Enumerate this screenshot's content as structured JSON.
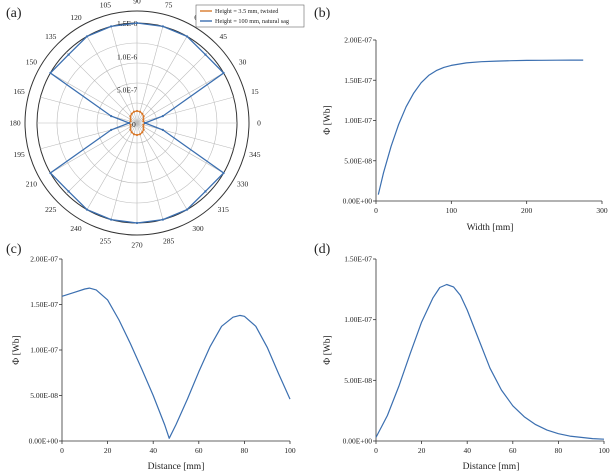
{
  "colors": {
    "blue": "#3b6fb0",
    "orange": "#d9792b",
    "axis": "#333333",
    "grid": "#bbbbbb"
  },
  "chart_data": [
    {
      "panel": "(a)",
      "type": "polar",
      "angle_labels": [
        "0",
        "15",
        "30",
        "45",
        "60",
        "75",
        "90",
        "105",
        "120",
        "135",
        "150",
        "165",
        "180",
        "195",
        "210",
        "225",
        "240",
        "255",
        "270",
        "285",
        "300",
        "315",
        "330",
        "345"
      ],
      "radial_ticks": [
        {
          "value": 5e-07,
          "label": "5.0E-7"
        },
        {
          "value": 1e-06,
          "label": "1.0E-6"
        },
        {
          "value": 1.5e-06,
          "label": "1.5E-6"
        }
      ],
      "rmax": 1.5e-06,
      "center_label": "0",
      "series": [
        {
          "name": "Height = 3.5 mm, twisted",
          "color": "#d9792b",
          "angles": [
            0,
            15,
            30,
            45,
            60,
            75,
            90,
            105,
            120,
            135,
            150,
            165,
            180,
            195,
            210,
            225,
            240,
            255,
            270,
            285,
            300,
            315,
            330,
            345,
            360
          ],
          "values": [
            1.2e-07,
            1e-07,
            1.1e-07,
            1.4e-07,
            1.6e-07,
            1.75e-07,
            1.8e-07,
            1.75e-07,
            1.6e-07,
            1.4e-07,
            1.1e-07,
            1e-07,
            1.2e-07,
            1e-07,
            1.1e-07,
            1.4e-07,
            1.6e-07,
            1.75e-07,
            1.8e-07,
            1.75e-07,
            1.6e-07,
            1.4e-07,
            1.1e-07,
            1e-07,
            1.2e-07
          ]
        },
        {
          "name": "Height = 100 mm, natural sag",
          "color": "#3b6fb0",
          "angles": [
            0,
            15,
            30,
            45,
            60,
            75,
            90,
            105,
            120,
            135,
            150,
            165,
            180,
            195,
            210,
            225,
            240,
            255,
            270,
            285,
            300,
            315,
            330,
            345,
            360
          ],
          "values": [
            1.2e-07,
            4e-07,
            1.5e-06,
            1.45e-06,
            1.5e-06,
            1.5e-06,
            1.5e-06,
            1.5e-06,
            1.5e-06,
            1.45e-06,
            1.5e-06,
            4e-07,
            1.2e-07,
            4e-07,
            1.5e-06,
            1.45e-06,
            1.5e-06,
            1.5e-06,
            1.5e-06,
            1.5e-06,
            1.5e-06,
            1.45e-06,
            1.5e-06,
            4e-07,
            1.2e-07
          ]
        }
      ]
    },
    {
      "panel": "(b)",
      "type": "line",
      "xlabel": "Width [mm]",
      "ylabel": "Φ [Wb]",
      "xlim": [
        0,
        300
      ],
      "ylim": [
        0,
        2e-07
      ],
      "xticks": [
        0,
        100,
        200,
        300
      ],
      "xtick_labels": [
        "0",
        "100",
        "200",
        "300"
      ],
      "yticks": [
        0,
        5e-08,
        1e-07,
        1.5e-07,
        2e-07
      ],
      "ytick_labels": [
        "0.00E+00",
        "5.00E-08",
        "1.00E-07",
        "1.50E-07",
        "2.00E-07"
      ],
      "series": [
        {
          "name": "Φ",
          "x": [
            3,
            10,
            20,
            30,
            40,
            50,
            60,
            70,
            80,
            90,
            100,
            120,
            140,
            160,
            180,
            200,
            220,
            240,
            260,
            275
          ],
          "y": [
            8e-09,
            3.5e-08,
            6.8e-08,
            9.5e-08,
            1.17e-07,
            1.34e-07,
            1.47e-07,
            1.56e-07,
            1.62e-07,
            1.66e-07,
            1.685e-07,
            1.715e-07,
            1.73e-07,
            1.738e-07,
            1.743e-07,
            1.746e-07,
            1.748e-07,
            1.749e-07,
            1.75e-07,
            1.75e-07
          ]
        }
      ]
    },
    {
      "panel": "(c)",
      "type": "line",
      "xlabel": "Distance [mm]",
      "ylabel": "Φ [Wb]",
      "xlim": [
        0,
        100
      ],
      "ylim": [
        0,
        2e-07
      ],
      "xticks": [
        0,
        20,
        40,
        60,
        80,
        100
      ],
      "xtick_labels": [
        "0",
        "20",
        "40",
        "60",
        "80",
        "100"
      ],
      "yticks": [
        0,
        5e-08,
        1e-07,
        1.5e-07,
        2e-07
      ],
      "ytick_labels": [
        "0.00E+00",
        "5.00E-08",
        "1.00E-07",
        "1.50E-07",
        "2.00E-07"
      ],
      "series": [
        {
          "name": "Φ",
          "x": [
            0,
            5,
            10,
            12,
            15,
            20,
            25,
            30,
            35,
            40,
            45,
            47,
            50,
            55,
            60,
            65,
            70,
            75,
            78,
            80,
            85,
            90,
            95,
            100
          ],
          "y": [
            1.59e-07,
            1.63e-07,
            1.67e-07,
            1.68e-07,
            1.66e-07,
            1.55e-07,
            1.33e-07,
            1.07e-07,
            7.9e-08,
            5e-08,
            1.8e-08,
            3e-09,
            1.8e-08,
            4.6e-08,
            7.6e-08,
            1.04e-07,
            1.26e-07,
            1.36e-07,
            1.38e-07,
            1.37e-07,
            1.26e-07,
            1.03e-07,
            7.4e-08,
            4.6e-08
          ]
        }
      ]
    },
    {
      "panel": "(d)",
      "type": "line",
      "xlabel": "Distance [mm]",
      "ylabel": "Φ [Wb]",
      "xlim": [
        0,
        100
      ],
      "ylim": [
        0,
        1.5e-07
      ],
      "xticks": [
        0,
        20,
        40,
        60,
        80,
        100
      ],
      "xtick_labels": [
        "0",
        "20",
        "40",
        "60",
        "80",
        "100"
      ],
      "yticks": [
        0,
        5e-08,
        1e-07,
        1.5e-07
      ],
      "ytick_labels": [
        "0.00E+00",
        "5.00E-08",
        "1.00E-07",
        "1.50E-07"
      ],
      "series": [
        {
          "name": "Φ",
          "x": [
            0,
            5,
            10,
            15,
            20,
            25,
            28,
            31,
            34,
            37,
            40,
            45,
            50,
            55,
            60,
            65,
            70,
            75,
            80,
            85,
            90,
            95,
            100
          ],
          "y": [
            3e-09,
            2.1e-08,
            4.5e-08,
            7.2e-08,
            9.8e-08,
            1.18e-07,
            1.265e-07,
            1.29e-07,
            1.27e-07,
            1.2e-07,
            1.08e-07,
            8.4e-08,
            6e-08,
            4.2e-08,
            2.9e-08,
            2e-08,
            1.35e-08,
            9e-09,
            6e-09,
            4e-09,
            3e-09,
            2e-09,
            1.5e-09
          ]
        }
      ]
    }
  ]
}
